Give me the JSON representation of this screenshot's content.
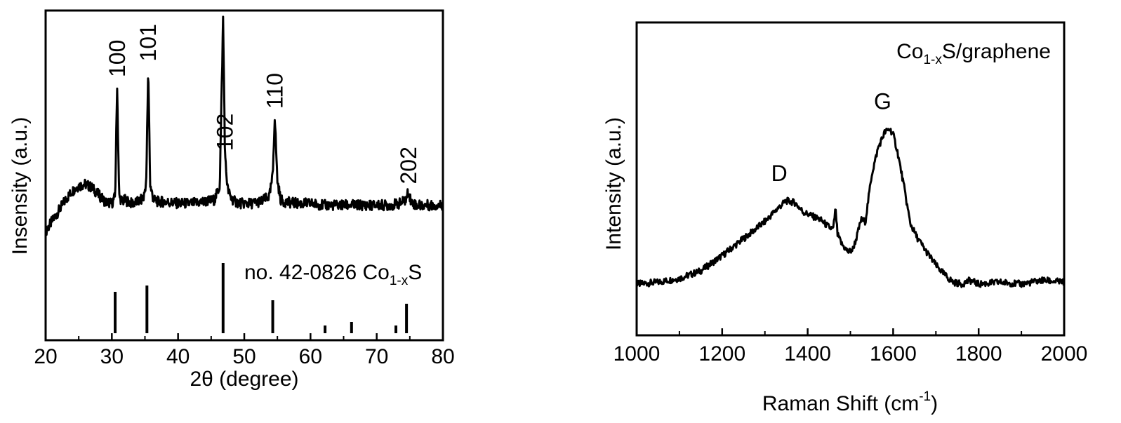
{
  "chart_data": [
    {
      "type": "line",
      "xlabel": "2θ (degree)",
      "ylabel": "Insensity (a.u.)",
      "xlim": [
        20,
        80
      ],
      "xticks": [
        "20",
        "30",
        "40",
        "50",
        "60",
        "70",
        "80"
      ],
      "y_tick_labels": false,
      "grid": false,
      "series": [
        {
          "x": [
            20,
            21,
            22,
            23,
            24,
            25,
            26,
            27,
            28,
            29,
            30,
            30.5,
            30.8,
            31.1,
            31.6,
            32,
            33,
            34,
            34.8,
            35.2,
            35.5,
            35.8,
            36.3,
            37,
            38,
            40,
            42,
            44,
            45.5,
            46.3,
            46.8,
            47.1,
            47.5,
            48,
            48.6,
            49.5,
            51,
            52.5,
            53.8,
            54.3,
            54.6,
            55.0,
            55.5,
            56,
            58,
            60,
            62,
            64,
            66,
            68,
            70,
            72,
            73.5,
            74.4,
            74.8,
            75.2,
            76,
            78,
            80
          ],
          "y": [
            0.16,
            0.22,
            0.28,
            0.34,
            0.39,
            0.42,
            0.43,
            0.41,
            0.37,
            0.33,
            0.32,
            0.36,
            1.0,
            0.36,
            0.33,
            0.34,
            0.32,
            0.33,
            0.35,
            0.45,
            1.09,
            0.42,
            0.34,
            0.33,
            0.33,
            0.32,
            0.32,
            0.33,
            0.34,
            0.42,
            1.38,
            0.58,
            0.4,
            0.35,
            0.33,
            0.32,
            0.32,
            0.33,
            0.36,
            0.48,
            0.82,
            0.45,
            0.34,
            0.33,
            0.32,
            0.32,
            0.31,
            0.31,
            0.31,
            0.31,
            0.31,
            0.31,
            0.32,
            0.34,
            0.39,
            0.33,
            0.31,
            0.31,
            0.31
          ]
        }
      ],
      "peak_labels": [
        {
          "text": "100",
          "x": 30.8
        },
        {
          "text": "101",
          "x": 35.5
        },
        {
          "text": "102",
          "x": 47.1
        },
        {
          "text": "110",
          "x": 54.6
        },
        {
          "text": "202",
          "x": 74.8
        }
      ],
      "reference": {
        "label_main": "no. 42-0826 Co",
        "label_sub": "1-x",
        "label_tail": "S",
        "sticks": [
          {
            "x": 30.5,
            "intensity": 0.59
          },
          {
            "x": 35.3,
            "intensity": 0.68
          },
          {
            "x": 46.8,
            "intensity": 1.0
          },
          {
            "x": 54.3,
            "intensity": 0.47
          },
          {
            "x": 62.2,
            "intensity": 0.11
          },
          {
            "x": 66.2,
            "intensity": 0.16
          },
          {
            "x": 72.9,
            "intensity": 0.11
          },
          {
            "x": 74.5,
            "intensity": 0.42
          }
        ]
      }
    },
    {
      "type": "line",
      "xlabel_main": "Raman Shift (cm",
      "xlabel_sup": "-1",
      "xlabel_tail": ")",
      "ylabel": "Intensity (a.u.)",
      "xlim": [
        1000,
        2000
      ],
      "xticks": [
        "1000",
        "1200",
        "1400",
        "1600",
        "1800",
        "2000"
      ],
      "y_tick_labels": false,
      "grid": false,
      "annotation_main": "Co",
      "annotation_sub": "1-x",
      "annotation_tail": "S/graphene",
      "series": [
        {
          "x": [
            1000,
            1050,
            1100,
            1150,
            1200,
            1250,
            1300,
            1330,
            1350,
            1370,
            1390,
            1410,
            1430,
            1450,
            1460,
            1465,
            1470,
            1480,
            1495,
            1505,
            1515,
            1525,
            1535,
            1550,
            1565,
            1580,
            1592,
            1600,
            1610,
            1625,
            1640,
            1655,
            1675,
            1700,
            1720,
            1740,
            1760,
            1780,
            1800,
            1850,
            1900,
            1950,
            2000
          ],
          "y": [
            0.0,
            0.01,
            0.03,
            0.07,
            0.15,
            0.24,
            0.33,
            0.4,
            0.44,
            0.43,
            0.38,
            0.36,
            0.34,
            0.3,
            0.29,
            0.4,
            0.26,
            0.21,
            0.17,
            0.18,
            0.25,
            0.34,
            0.33,
            0.58,
            0.72,
            0.8,
            0.82,
            0.79,
            0.7,
            0.52,
            0.32,
            0.25,
            0.18,
            0.1,
            0.05,
            0.01,
            0.0,
            0.02,
            0.0,
            0.01,
            0.0,
            0.02,
            0.01
          ]
        }
      ],
      "peak_labels": [
        {
          "text": "D",
          "x": 1350
        },
        {
          "text": "G",
          "x": 1592
        }
      ]
    }
  ]
}
